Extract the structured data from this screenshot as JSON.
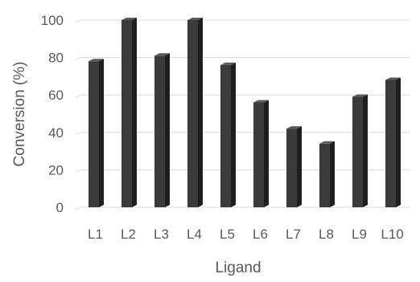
{
  "chart_data": {
    "type": "bar",
    "style": "3d-column",
    "categories": [
      "L1",
      "L2",
      "L3",
      "L4",
      "L5",
      "L6",
      "L7",
      "L8",
      "L9",
      "L10"
    ],
    "values": [
      78,
      100,
      81,
      100,
      76,
      56,
      42,
      34,
      59,
      68
    ],
    "xlabel": "Ligand",
    "ylabel": "Conversion (%)",
    "ylim": [
      0,
      100
    ],
    "yticks": [
      0,
      20,
      40,
      60,
      80,
      100
    ],
    "grid": true,
    "legend": "none",
    "colors": {
      "bar_front": "#3b3b3b",
      "bar_side": "#1e1e1e",
      "bar_top": "#5a5a5a",
      "gridline": "#d9d9d9",
      "text": "#595959"
    }
  }
}
